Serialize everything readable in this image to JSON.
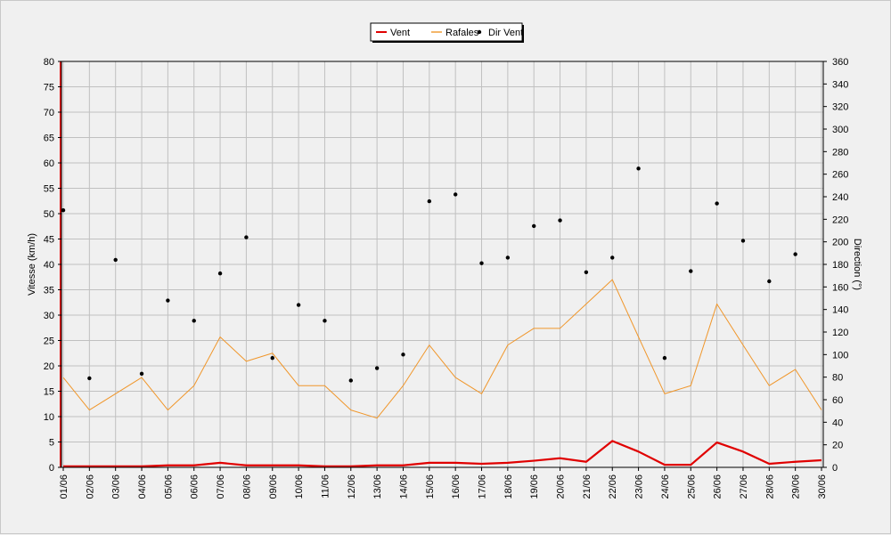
{
  "chart_data": {
    "type": "line",
    "title": "",
    "ylabel": "Vitesse (km/h)",
    "y2label": "Direction (°)",
    "ylim": [
      0,
      80
    ],
    "y2lim": [
      0,
      360
    ],
    "yticks": [
      0,
      5,
      10,
      15,
      20,
      25,
      30,
      35,
      40,
      45,
      50,
      55,
      60,
      65,
      70,
      75,
      80
    ],
    "y2ticks": [
      0,
      20,
      40,
      60,
      80,
      100,
      120,
      140,
      160,
      180,
      200,
      220,
      240,
      260,
      280,
      300,
      320,
      340,
      360
    ],
    "grid": true,
    "legend_position": "top-center",
    "categories": [
      "01/06",
      "02/06",
      "03/06",
      "04/06",
      "05/06",
      "06/06",
      "07/06",
      "08/06",
      "09/06",
      "10/06",
      "11/06",
      "12/06",
      "13/06",
      "14/06",
      "15/06",
      "16/06",
      "17/06",
      "18/06",
      "19/06",
      "20/06",
      "21/06",
      "22/06",
      "23/06",
      "24/06",
      "25/06",
      "26/06",
      "27/06",
      "28/06",
      "29/06",
      "30/06"
    ],
    "series": [
      {
        "name": "Vent",
        "axis": "left",
        "style": "line",
        "color": "#e00000",
        "values": [
          0.2,
          0.2,
          0.2,
          0.2,
          0.4,
          0.4,
          0.9,
          0.4,
          0.4,
          0.4,
          0.2,
          0.2,
          0.4,
          0.4,
          0.9,
          0.9,
          0.7,
          0.9,
          1.3,
          1.8,
          1.1,
          5.2,
          3.1,
          0.5,
          0.5,
          4.9,
          3.1,
          0.7,
          1.1,
          1.4
        ]
      },
      {
        "name": "Rafales",
        "axis": "left",
        "style": "line",
        "color": "#f0962a",
        "values": [
          17.7,
          11.3,
          14.5,
          17.7,
          11.3,
          16.1,
          25.7,
          20.9,
          22.5,
          16.1,
          16.1,
          11.3,
          9.7,
          16.1,
          24.1,
          17.7,
          14.5,
          24.1,
          27.4,
          27.4,
          32.2,
          37.0,
          25.7,
          14.5,
          16.1,
          32.2,
          24.1,
          16.1,
          19.3,
          11.3
        ]
      },
      {
        "name": "Dir Vent",
        "axis": "right",
        "style": "points",
        "color": "#000000",
        "values": [
          228,
          79,
          184,
          83,
          148,
          130,
          172,
          204,
          97,
          144,
          130,
          77,
          88,
          100,
          236,
          242,
          181,
          186,
          214,
          219,
          173,
          186,
          265,
          97,
          174,
          234,
          201,
          165,
          189,
          null
        ]
      }
    ]
  }
}
